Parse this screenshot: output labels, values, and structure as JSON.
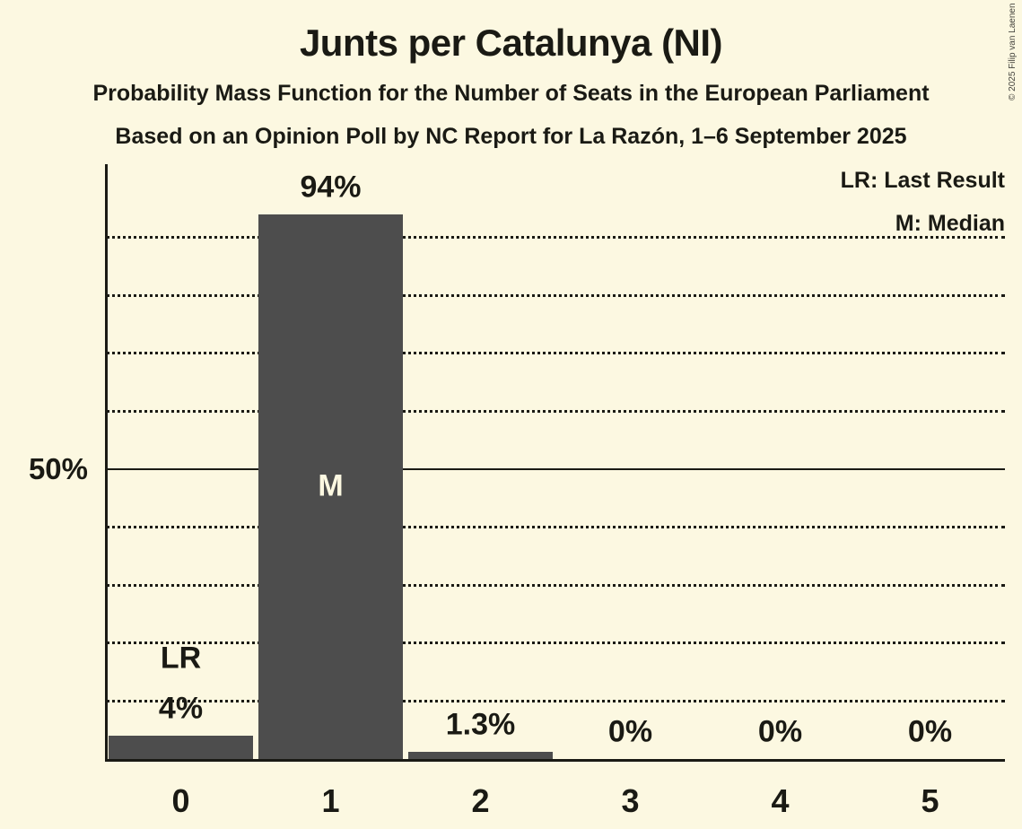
{
  "copyright": "© 2025 Filip van Laenen",
  "chart_data": {
    "type": "bar",
    "title": "Junts per Catalunya (NI)",
    "subtitle": "Probability Mass Function for the Number of Seats in the European Parliament",
    "source_line": "Based on an Opinion Poll by NC Report for La Razón, 1–6 September 2025",
    "categories": [
      "0",
      "1",
      "2",
      "3",
      "4",
      "5"
    ],
    "values": [
      4,
      94,
      1.3,
      0,
      0,
      0
    ],
    "value_labels": [
      "4%",
      "94%",
      "1.3%",
      "0%",
      "0%",
      "0%"
    ],
    "xlabel": "",
    "ylabel": "",
    "ylim": [
      0,
      102.5
    ],
    "gridlines_pct": [
      10,
      20,
      30,
      40,
      60,
      70,
      80,
      90
    ],
    "solid_line_pct": 50,
    "grid_style": "dotted horizontal lines, solid line at 50%",
    "ytick_labels": {
      "50": "50%"
    },
    "legend": [
      "LR: Last Result",
      "M: Median"
    ],
    "legend_position": "top-right",
    "annotations": [
      {
        "category": "0",
        "label": "LR",
        "meaning": "Last Result",
        "position": "above-bar"
      },
      {
        "category": "1",
        "label": "M",
        "meaning": "Median",
        "position": "inside-bar"
      }
    ],
    "colors": {
      "background": "#FCF8E1",
      "bar": "#4D4D4D",
      "text": "#1A1A14",
      "inside_label": "#FCF8E1"
    }
  }
}
